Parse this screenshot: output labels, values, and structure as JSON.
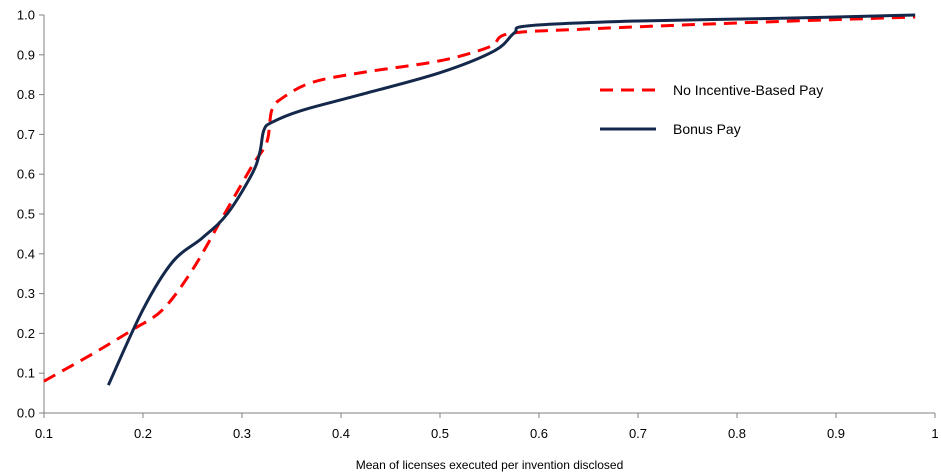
{
  "chart_data": {
    "type": "line",
    "title": "",
    "xlabel": "Mean of licenses executed per invention disclosed",
    "ylabel": "",
    "xlim": [
      0.1,
      1.0
    ],
    "ylim": [
      0.0,
      1.0
    ],
    "x_ticks": [
      "0.1",
      "0.2",
      "0.3",
      "0.4",
      "0.5",
      "0.6",
      "0.7",
      "0.8",
      "0.9",
      "1"
    ],
    "y_ticks": [
      "0.0",
      "0.1",
      "0.2",
      "0.3",
      "0.4",
      "0.5",
      "0.6",
      "0.7",
      "0.8",
      "0.9",
      "1.0"
    ],
    "grid": false,
    "legend_position": "upper-right",
    "series": [
      {
        "name": "No Incentive-Based Pay",
        "color": "#ff0000",
        "style": "dashed",
        "x": [
          0.1,
          0.15,
          0.19,
          0.22,
          0.25,
          0.28,
          0.31,
          0.325,
          0.33,
          0.34,
          0.37,
          0.42,
          0.5,
          0.55,
          0.57,
          0.65,
          0.8,
          0.98
        ],
        "y": [
          0.08,
          0.15,
          0.21,
          0.26,
          0.36,
          0.49,
          0.62,
          0.68,
          0.76,
          0.79,
          0.83,
          0.855,
          0.885,
          0.92,
          0.953,
          0.965,
          0.98,
          0.995
        ]
      },
      {
        "name": "Bonus Pay",
        "color": "#14284b",
        "style": "solid",
        "x": [
          0.165,
          0.2,
          0.23,
          0.26,
          0.285,
          0.31,
          0.318,
          0.322,
          0.33,
          0.36,
          0.42,
          0.5,
          0.555,
          0.575,
          0.59,
          0.7,
          0.85,
          0.98
        ],
        "y": [
          0.07,
          0.26,
          0.38,
          0.44,
          0.5,
          0.6,
          0.655,
          0.71,
          0.73,
          0.76,
          0.8,
          0.855,
          0.91,
          0.955,
          0.973,
          0.985,
          0.992,
          1.0
        ]
      }
    ]
  }
}
